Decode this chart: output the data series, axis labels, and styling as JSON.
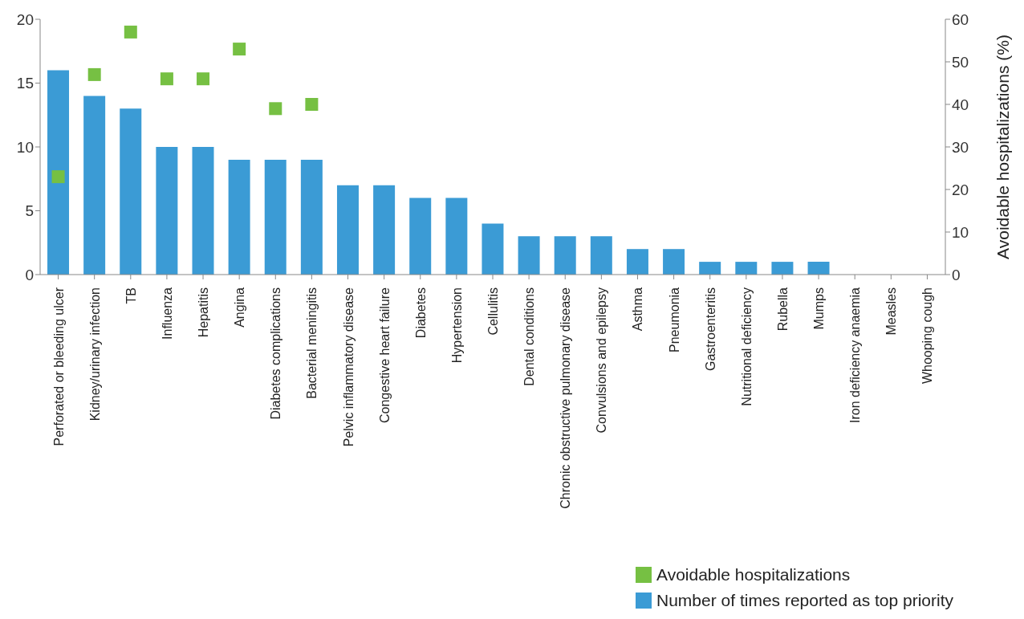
{
  "chart_data": {
    "type": "bar",
    "y2label": "Avoidable hospitalizations (%)",
    "categories": [
      "Perforated or bleeding ulcer",
      "Kidney/urinary infection",
      "TB",
      "Influenza",
      "Hepatitis",
      "Angina",
      "Diabetes complications",
      "Bacterial meningitis",
      "Pelvic inflammatory disease",
      "Congestive heart failure",
      "Diabetes",
      "Hypertension",
      "Cellulitis",
      "Dental conditions",
      "Chronic obstructive pulmonary disease",
      "Convulsions and epilepsy",
      "Asthma",
      "Pneumonia",
      "Gastroenteritis",
      "Nutritional deficiency",
      "Rubella",
      "Mumps",
      "Iron deficiency anaemia",
      "Measles",
      "Whooping cough"
    ],
    "series": [
      {
        "name": "Avoidable hospitalizations",
        "type": "scatter",
        "axis": "y2",
        "color": "#76c043",
        "x": [
          "Perforated or bleeding ulcer",
          "Kidney/urinary infection",
          "TB",
          "Influenza",
          "Hepatitis",
          "Angina",
          "Diabetes complications",
          "Bacterial meningitis"
        ],
        "values": [
          23,
          47,
          57,
          46,
          46,
          53,
          39,
          40
        ]
      },
      {
        "name": "Number of times reported as top priority",
        "color": "#3b9bd5",
        "values": [
          16,
          14,
          13,
          10,
          10,
          9,
          9,
          9,
          7,
          7,
          6,
          6,
          4,
          3,
          3,
          3,
          2,
          2,
          1,
          1,
          1,
          1,
          0,
          0,
          0
        ]
      }
    ],
    "ylim": [
      0,
      20
    ],
    "yticks": [
      0,
      5,
      10,
      15,
      20
    ],
    "y2lim": [
      0,
      60
    ],
    "y2ticks": [
      0,
      10,
      20,
      30,
      40,
      50,
      60
    ],
    "marker": "square",
    "grid": false,
    "legend": "bottom right"
  }
}
